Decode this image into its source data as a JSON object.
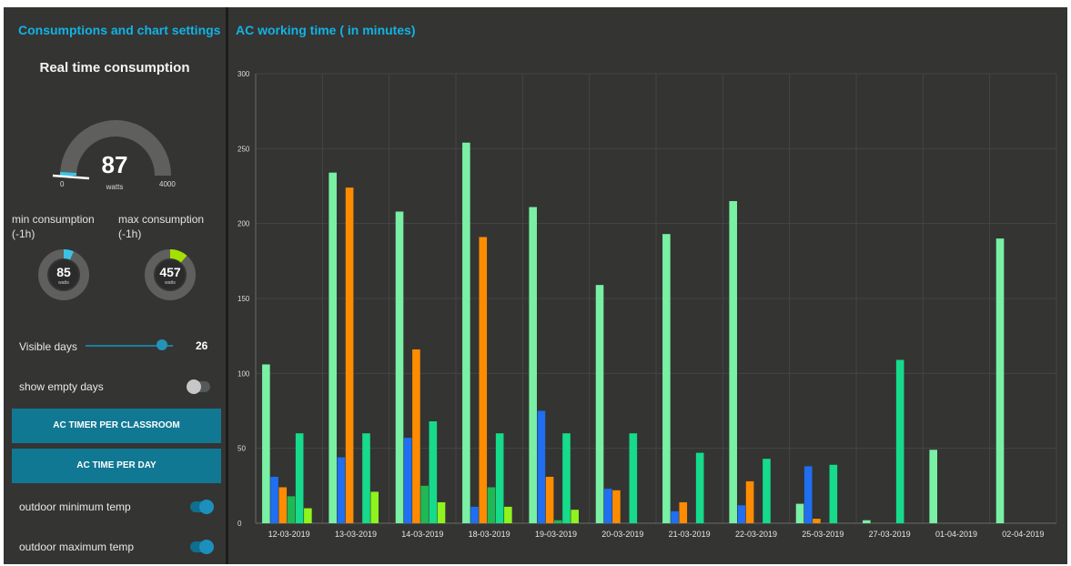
{
  "left_panel": {
    "title": "Consumptions and chart settings",
    "gauge": {
      "title": "Real time consumption",
      "value": 87,
      "unit": "watts",
      "min": "0",
      "max": "4000"
    },
    "min_consumption": {
      "label": "min consumption (-1h)",
      "value": 85,
      "unit": "watts"
    },
    "max_consumption": {
      "label": "max consumption (-1h)",
      "value": 457,
      "unit": "watts"
    },
    "visible_days": {
      "label": "Visible days",
      "value": "26"
    },
    "show_empty_days": {
      "label": "show empty days",
      "on": false
    },
    "buttons": {
      "timer_per_classroom": "AC TIMER PER CLASSROOM",
      "time_per_day": "AC TIME PER DAY"
    },
    "toggles": {
      "outdoor_min": {
        "label": "outdoor minimum temp",
        "on": true
      },
      "outdoor_max": {
        "label": "outdoor maximum temp",
        "on": true
      }
    }
  },
  "colors": {
    "accent": "#11b3e4",
    "gauge_fill": "#3ac3e4",
    "max_fill": "#a3e000",
    "button_bg": "#117893",
    "panel_bg": "#343433"
  },
  "chart_data": {
    "type": "bar",
    "title": "AC working time ( in minutes)",
    "categories": [
      "12-03-2019",
      "13-03-2019",
      "14-03-2019",
      "18-03-2019",
      "19-03-2019",
      "20-03-2019",
      "21-03-2019",
      "22-03-2019",
      "25-03-2019",
      "27-03-2019",
      "01-04-2019",
      "02-04-2019"
    ],
    "ylim": [
      0,
      300
    ],
    "yticks": [
      0,
      50,
      100,
      150,
      200,
      250,
      300
    ],
    "grid": true,
    "series": [
      {
        "color": "#79f0a4",
        "values": [
          106,
          234,
          208,
          254,
          211,
          159,
          193,
          215,
          13,
          2,
          49,
          190
        ]
      },
      {
        "color": "#1f6ff0",
        "values": [
          31,
          44,
          57,
          11,
          75,
          23,
          8,
          12,
          38,
          0,
          0,
          0
        ]
      },
      {
        "color": "#ff8c00",
        "values": [
          24,
          224,
          116,
          191,
          31,
          22,
          14,
          28,
          3,
          0,
          0,
          0
        ]
      },
      {
        "color": "#1fb855",
        "values": [
          18,
          0,
          25,
          24,
          2,
          0,
          0,
          0,
          0,
          0,
          0,
          0
        ]
      },
      {
        "color": "#15db8b",
        "values": [
          60,
          60,
          68,
          60,
          60,
          60,
          47,
          43,
          39,
          109,
          0,
          0
        ]
      },
      {
        "color": "#8ff31d",
        "values": [
          10,
          21,
          14,
          11,
          9,
          0,
          0,
          0,
          0,
          0,
          0,
          0
        ]
      }
    ]
  }
}
